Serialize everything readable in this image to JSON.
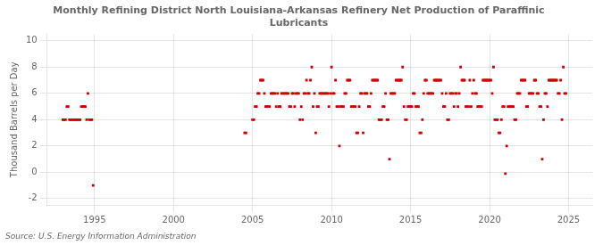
{
  "chart_data": {
    "type": "scatter",
    "title": "Monthly Refining District North Louisiana-Arkansas Refinery Net Production of Paraffinic\nLubricants",
    "ylabel": "Thousand Barrels per Day",
    "source": "Source: U.S. Energy Information Administration",
    "color": "#cc0000",
    "marker": "square",
    "grid": true,
    "xlim": [
      1992.0,
      2026.5
    ],
    "ylim": [
      -2.5,
      10.5
    ],
    "xticks": [
      1995,
      2000,
      2005,
      2010,
      2015,
      2020,
      2025
    ],
    "yticks": [
      -2,
      0,
      2,
      4,
      6,
      8,
      10
    ],
    "x": [
      1993.0,
      1993.083,
      1993.167,
      1993.25,
      1993.333,
      1993.417,
      1993.5,
      1993.583,
      1993.667,
      1993.75,
      1993.833,
      1993.917,
      1994.0,
      1994.083,
      1994.167,
      1994.25,
      1994.333,
      1994.417,
      1994.5,
      1994.583,
      1994.667,
      1994.75,
      1994.833,
      1994.917,
      2004.5,
      2004.583,
      2005.0,
      2005.083,
      2005.167,
      2005.25,
      2005.333,
      2005.417,
      2005.5,
      2005.583,
      2005.667,
      2005.75,
      2005.833,
      2005.917,
      2006.0,
      2006.083,
      2006.167,
      2006.25,
      2006.333,
      2006.417,
      2006.5,
      2006.583,
      2006.667,
      2006.75,
      2006.833,
      2006.917,
      2007.0,
      2007.083,
      2007.167,
      2007.25,
      2007.333,
      2007.417,
      2007.5,
      2007.583,
      2007.667,
      2007.75,
      2007.833,
      2007.917,
      2008.0,
      2008.083,
      2008.167,
      2008.25,
      2008.333,
      2008.417,
      2008.5,
      2008.583,
      2008.667,
      2008.75,
      2008.833,
      2008.917,
      2009.0,
      2009.083,
      2009.167,
      2009.25,
      2009.333,
      2009.417,
      2009.5,
      2009.583,
      2009.667,
      2009.75,
      2009.833,
      2009.917,
      2010.0,
      2010.083,
      2010.167,
      2010.25,
      2010.333,
      2010.417,
      2010.5,
      2010.583,
      2010.667,
      2010.75,
      2010.833,
      2010.917,
      2011.0,
      2011.083,
      2011.167,
      2011.25,
      2011.333,
      2011.417,
      2011.5,
      2011.583,
      2011.667,
      2011.75,
      2011.833,
      2011.917,
      2012.0,
      2012.083,
      2012.167,
      2012.25,
      2012.333,
      2012.417,
      2012.5,
      2012.583,
      2012.667,
      2012.75,
      2012.833,
      2012.917,
      2013.0,
      2013.083,
      2013.167,
      2013.25,
      2013.333,
      2013.417,
      2013.5,
      2013.583,
      2013.667,
      2013.75,
      2013.833,
      2013.917,
      2014.0,
      2014.083,
      2014.167,
      2014.25,
      2014.333,
      2014.417,
      2014.5,
      2014.583,
      2014.667,
      2014.75,
      2014.833,
      2014.917,
      2015.0,
      2015.083,
      2015.167,
      2015.25,
      2015.333,
      2015.417,
      2015.5,
      2015.583,
      2015.667,
      2015.75,
      2015.833,
      2015.917,
      2016.0,
      2016.083,
      2016.167,
      2016.25,
      2016.333,
      2016.417,
      2016.5,
      2016.583,
      2016.667,
      2016.75,
      2016.833,
      2016.917,
      2017.0,
      2017.083,
      2017.167,
      2017.25,
      2017.333,
      2017.417,
      2017.5,
      2017.583,
      2017.667,
      2017.75,
      2017.833,
      2017.917,
      2018.0,
      2018.083,
      2018.167,
      2018.25,
      2018.333,
      2018.417,
      2018.5,
      2018.583,
      2018.667,
      2018.75,
      2018.833,
      2018.917,
      2019.0,
      2019.083,
      2019.167,
      2019.25,
      2019.333,
      2019.417,
      2019.5,
      2019.583,
      2019.667,
      2019.75,
      2019.833,
      2019.917,
      2020.0,
      2020.083,
      2020.167,
      2020.25,
      2020.333,
      2020.417,
      2020.5,
      2020.583,
      2020.667,
      2020.75,
      2020.833,
      2020.917,
      2021.0,
      2021.083,
      2021.167,
      2021.25,
      2021.333,
      2021.417,
      2021.5,
      2021.583,
      2021.667,
      2021.75,
      2021.833,
      2021.917,
      2022.0,
      2022.083,
      2022.167,
      2022.25,
      2022.333,
      2022.417,
      2022.5,
      2022.583,
      2022.667,
      2022.75,
      2022.833,
      2022.917,
      2023.0,
      2023.083,
      2023.167,
      2023.25,
      2023.333,
      2023.417,
      2023.5,
      2023.583,
      2023.667,
      2023.75,
      2023.833,
      2023.917,
      2024.0,
      2024.083,
      2024.167,
      2024.25,
      2024.333,
      2024.417,
      2024.5,
      2024.583,
      2024.667,
      2024.75,
      2024.833
    ],
    "values": [
      4.0,
      4.0,
      4.0,
      5.0,
      5.0,
      4.0,
      4.0,
      4.0,
      4.0,
      4.0,
      4.0,
      4.0,
      4.0,
      4.0,
      5.0,
      5.0,
      5.0,
      5.0,
      4.0,
      6.0,
      4.0,
      4.0,
      4.0,
      -1.0,
      3.0,
      3.0,
      4.0,
      4.0,
      5.0,
      5.0,
      6.0,
      6.0,
      7.0,
      7.0,
      7.0,
      6.0,
      5.0,
      5.0,
      5.0,
      5.0,
      6.0,
      6.0,
      6.0,
      6.0,
      5.0,
      6.0,
      5.0,
      5.0,
      6.0,
      6.0,
      6.0,
      6.0,
      6.0,
      6.0,
      5.0,
      5.0,
      6.0,
      6.0,
      5.0,
      6.0,
      6.0,
      6.0,
      4.0,
      5.0,
      4.0,
      6.0,
      6.0,
      7.0,
      6.0,
      6.0,
      7.0,
      8.0,
      5.0,
      6.0,
      3.0,
      5.0,
      5.0,
      6.0,
      6.0,
      6.0,
      6.0,
      6.0,
      6.0,
      6.0,
      5.0,
      6.0,
      8.0,
      6.0,
      6.0,
      7.0,
      5.0,
      5.0,
      2.0,
      5.0,
      5.0,
      5.0,
      6.0,
      6.0,
      7.0,
      7.0,
      7.0,
      5.0,
      5.0,
      5.0,
      5.0,
      3.0,
      3.0,
      5.0,
      6.0,
      6.0,
      3.0,
      6.0,
      6.0,
      6.0,
      5.0,
      5.0,
      6.0,
      7.0,
      7.0,
      7.0,
      7.0,
      7.0,
      4.0,
      4.0,
      4.0,
      5.0,
      5.0,
      6.0,
      4.0,
      4.0,
      1.0,
      6.0,
      6.0,
      6.0,
      6.0,
      7.0,
      7.0,
      7.0,
      7.0,
      7.0,
      8.0,
      5.0,
      4.0,
      4.0,
      5.0,
      5.0,
      5.0,
      5.0,
      6.0,
      6.0,
      5.0,
      5.0,
      5.0,
      3.0,
      3.0,
      4.0,
      6.0,
      7.0,
      7.0,
      6.0,
      6.0,
      6.0,
      6.0,
      6.0,
      7.0,
      7.0,
      7.0,
      7.0,
      7.0,
      7.0,
      6.0,
      5.0,
      5.0,
      6.0,
      4.0,
      4.0,
      6.0,
      6.0,
      6.0,
      5.0,
      6.0,
      6.0,
      5.0,
      6.0,
      8.0,
      7.0,
      7.0,
      7.0,
      5.0,
      5.0,
      5.0,
      7.0,
      5.0,
      6.0,
      7.0,
      6.0,
      6.0,
      5.0,
      5.0,
      5.0,
      5.0,
      7.0,
      7.0,
      7.0,
      7.0,
      7.0,
      7.0,
      7.0,
      6.0,
      8.0,
      4.0,
      4.0,
      4.0,
      3.0,
      3.0,
      4.0,
      5.0,
      5.0,
      -0.1,
      2.0,
      5.0,
      5.0,
      5.0,
      5.0,
      5.0,
      4.0,
      4.0,
      6.0,
      6.0,
      6.0,
      7.0,
      7.0,
      7.0,
      7.0,
      5.0,
      5.0,
      6.0,
      6.0,
      6.0,
      6.0,
      7.0,
      7.0,
      6.0,
      6.0,
      5.0,
      5.0,
      1.0,
      4.0,
      6.0,
      6.0,
      5.0,
      7.0,
      7.0,
      7.0,
      7.0,
      7.0,
      7.0,
      7.0,
      6.0,
      6.0,
      7.0,
      4.0,
      8.0,
      6.0,
      6.0
    ]
  }
}
